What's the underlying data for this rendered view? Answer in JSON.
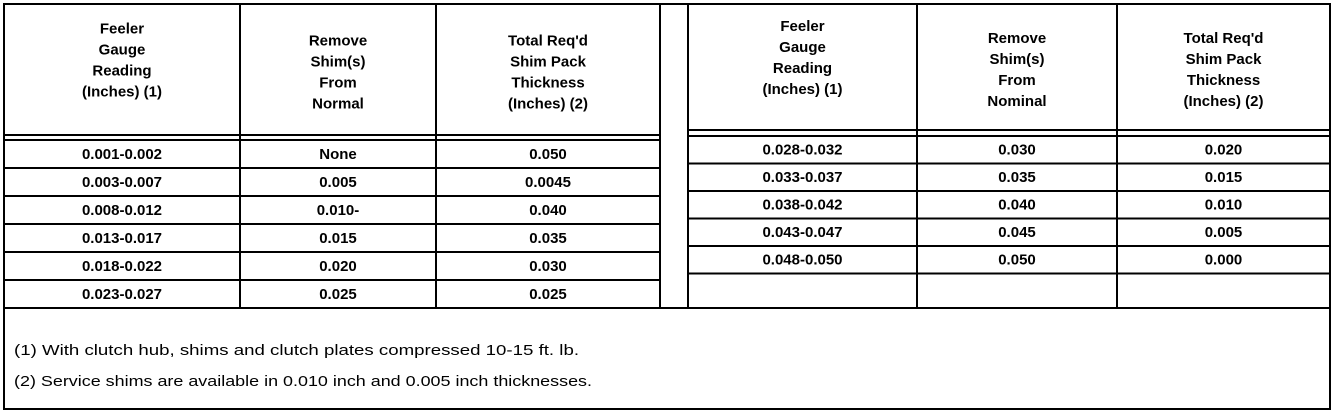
{
  "left": {
    "headers": [
      [
        "Feeler",
        "Gauge",
        "Reading",
        "(Inches) (1)"
      ],
      [
        "Remove",
        "Shim(s)",
        "From",
        "Normal"
      ],
      [
        "Total Req'd",
        "Shim Pack",
        "Thickness",
        "(Inches) (2)"
      ]
    ],
    "rows": [
      [
        "0.001-0.002",
        "None",
        "0.050"
      ],
      [
        "0.003-0.007",
        "0.005",
        "0.0045"
      ],
      [
        "0.008-0.012",
        "0.010-",
        "0.040"
      ],
      [
        "0.013-0.017",
        "0.015",
        "0.035"
      ],
      [
        "0.018-0.022",
        "0.020",
        "0.030"
      ],
      [
        "0.023-0.027",
        "0.025",
        "0.025"
      ]
    ]
  },
  "right": {
    "headers": [
      [
        "Feeler",
        "Gauge",
        "Reading",
        "(Inches) (1)"
      ],
      [
        "Remove",
        "Shim(s)",
        "From",
        "Nominal"
      ],
      [
        "Total Req'd",
        "Shim Pack",
        "Thickness",
        "(Inches) (2)"
      ]
    ],
    "rows": [
      [
        "0.028-0.032",
        "0.030",
        "0.020"
      ],
      [
        "0.033-0.037",
        "0.035",
        "0.015"
      ],
      [
        "0.038-0.042",
        "0.040",
        "0.010"
      ],
      [
        "0.043-0.047",
        "0.045",
        "0.005"
      ],
      [
        "0.048-0.050",
        "0.050",
        "0.000"
      ]
    ]
  },
  "footnotes": [
    "(1) With clutch hub, shims and clutch plates compressed 10-15 ft. lb.",
    "(2) Service shims are available in 0.010 inch and 0.005 inch thicknesses."
  ]
}
